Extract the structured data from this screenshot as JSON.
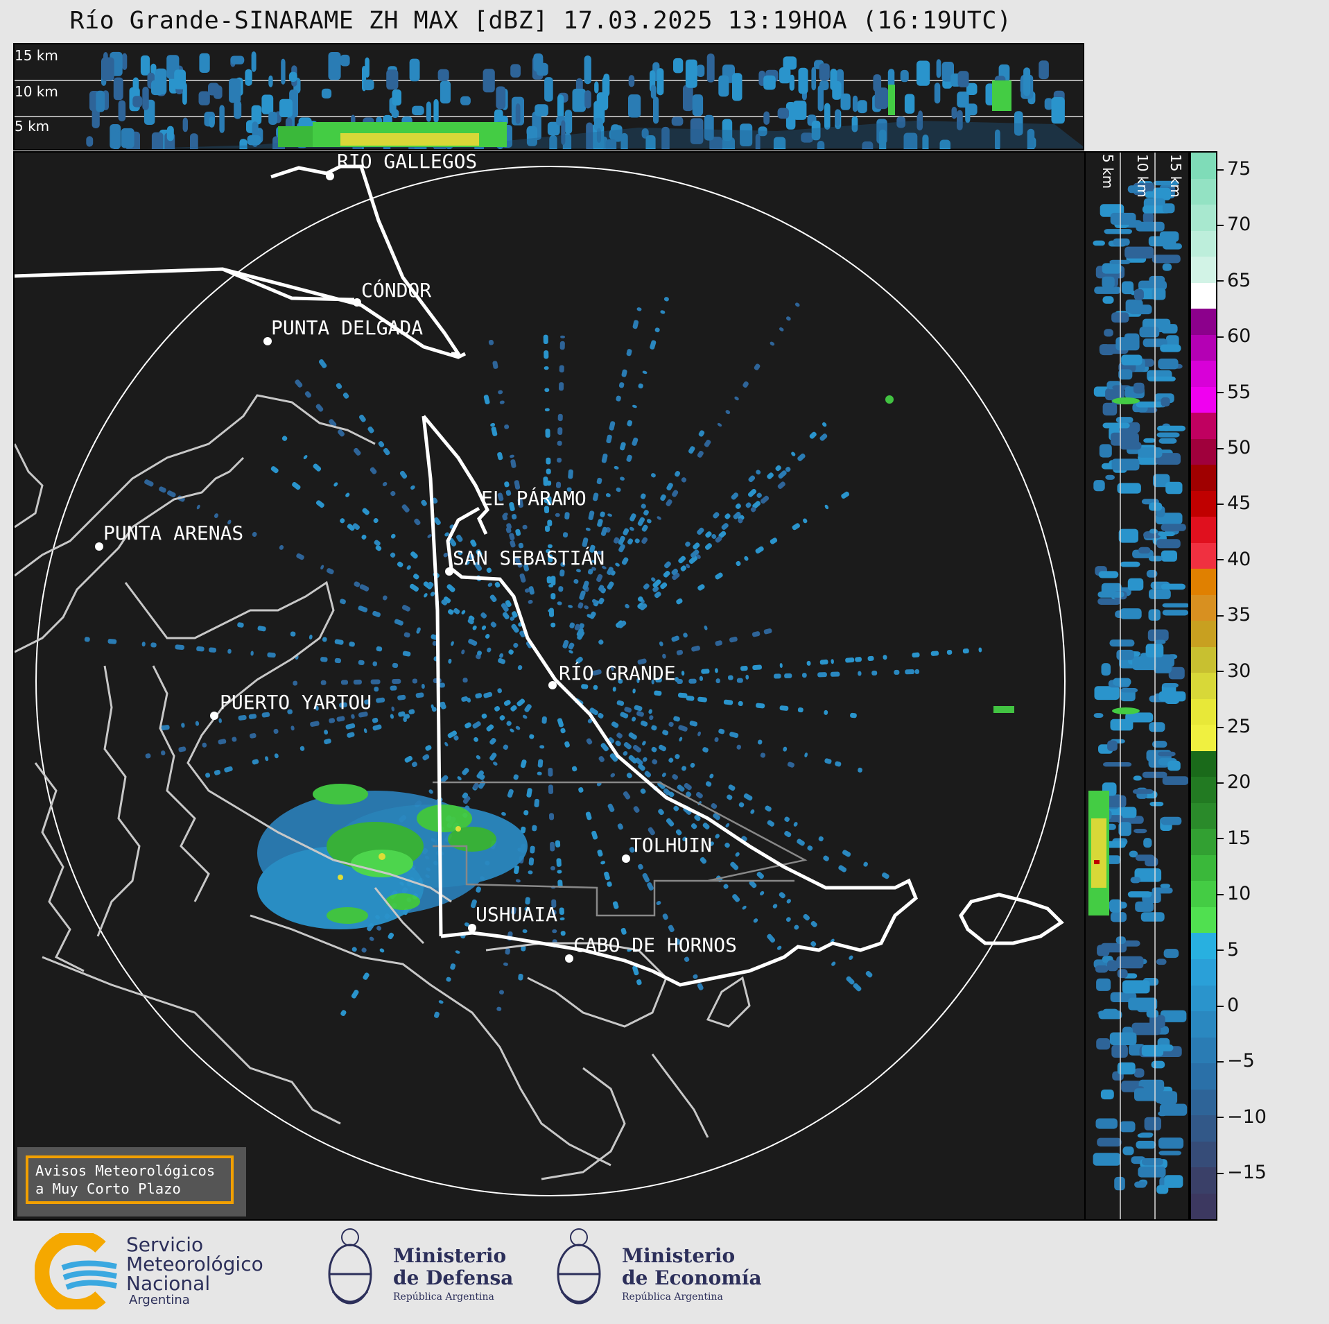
{
  "title": "Río Grande-SINARAME ZH MAX [dBZ] 17.03.2025 13:19HOA (16:19UTC)",
  "height_labels": [
    "15 km",
    "10 km",
    "5 km"
  ],
  "side_height_labels": [
    "5 km",
    "10 km",
    "15 km"
  ],
  "cities": [
    {
      "name": "RÍO GALLEGOS"
    },
    {
      "name": "CÓNDOR"
    },
    {
      "name": "PUNTA DELGADA"
    },
    {
      "name": "EL PÁRAMO"
    },
    {
      "name": "PUNTA ARENAS"
    },
    {
      "name": "SAN SEBASTIÁN"
    },
    {
      "name": "RÍO GRANDE"
    },
    {
      "name": "PUERTO YARTOU"
    },
    {
      "name": "TOLHUIN"
    },
    {
      "name": "USHUAIA"
    },
    {
      "name": "CABO DE HORNOS"
    }
  ],
  "colorbar": {
    "unit": "dBZ",
    "ticks": [
      "75",
      "70",
      "65",
      "60",
      "55",
      "50",
      "45",
      "40",
      "35",
      "30",
      "25",
      "20",
      "15",
      "10",
      "5",
      "0",
      "−5",
      "−10",
      "−15"
    ],
    "colors": [
      "#7fdcb8",
      "#93e2c3",
      "#a8e8cf",
      "#bdeedb",
      "#d2f3e6",
      "#ffffff",
      "#8c008c",
      "#b400b4",
      "#d800d8",
      "#f000f0",
      "#c00060",
      "#a0003c",
      "#a00000",
      "#c00000",
      "#e0101e",
      "#f03040",
      "#e08000",
      "#d89020",
      "#c8a020",
      "#c8c030",
      "#d8d838",
      "#e8e838",
      "#f0f040",
      "#1a6a1a",
      "#227a22",
      "#2a8a2a",
      "#32a032",
      "#3ab83a",
      "#44cc44",
      "#50e050",
      "#28b0e0",
      "#2aa0d8",
      "#2a94cc",
      "#2a88c0",
      "#2a7cb4",
      "#2a70a8",
      "#2e6498",
      "#325888",
      "#364c78",
      "#3a4068",
      "#3c3860"
    ]
  },
  "warning_box": {
    "line1": "Avisos Meteorológicos",
    "line2": "a Muy Corto Plazo"
  },
  "logos": {
    "smn": {
      "line1": "Servicio",
      "line2": "Meteorológico",
      "line3": "Nacional",
      "line4": "Argentina"
    },
    "defensa": {
      "line1": "Ministerio",
      "line2": "de Defensa",
      "line3": "República Argentina"
    },
    "economia": {
      "line1": "Ministerio",
      "line2": "de Economía",
      "line3": "República Argentina"
    }
  },
  "colors": {
    "background": "#e6e6e6",
    "map_bg": "#1b1b1b",
    "warning_border": "#f2a000",
    "smn_orange": "#f5a800",
    "smn_blue": "#3aa8e0"
  }
}
